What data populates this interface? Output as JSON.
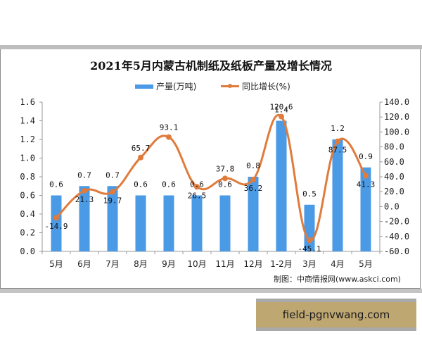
{
  "chart_data": {
    "type": "bar+line",
    "title": "2021年5月内蒙古机制纸及纸板产量及增长情况",
    "categories": [
      "5月",
      "6月",
      "7月",
      "8月",
      "9月",
      "10月",
      "11月",
      "12月",
      "1-2月",
      "3月",
      "4月",
      "5月"
    ],
    "series": [
      {
        "name": "产量(万吨)",
        "type": "bar",
        "axis": "left",
        "color": "#4a9ae6",
        "values": [
          0.6,
          0.7,
          0.7,
          0.6,
          0.6,
          0.6,
          0.6,
          0.8,
          1.4,
          0.5,
          1.2,
          0.9
        ],
        "labels": [
          "0.6",
          "0.7",
          "0.7",
          "0.6",
          "0.6",
          "0.6",
          "0.6",
          "0.8",
          "1.4",
          "0.5",
          "1.2",
          "0.9"
        ]
      },
      {
        "name": "同比增长(%)",
        "type": "line",
        "axis": "right",
        "color": "#e07b3c",
        "values": [
          -14.9,
          21.3,
          19.7,
          65.7,
          93.1,
          26.5,
          37.8,
          36.2,
          120.6,
          -45.1,
          87.5,
          41.3
        ],
        "labels": [
          "-14.9",
          "21.3",
          "19.7",
          "65.7",
          "93.1",
          "26.5",
          "37.8",
          "36.2",
          "120.6",
          "-45.1",
          "87.5",
          "41.3"
        ]
      }
    ],
    "y_left": {
      "label": "",
      "ticks": [
        "0.0",
        "0.2",
        "0.4",
        "0.6",
        "0.8",
        "1.0",
        "1.2",
        "1.4",
        "1.6"
      ],
      "ylim": [
        0,
        1.6
      ]
    },
    "y_right": {
      "label": "",
      "ticks": [
        "-60.0",
        "-40.0",
        "-20.0",
        "0.0",
        "20.0",
        "40.0",
        "60.0",
        "80.0",
        "100.0",
        "120.0",
        "140.0"
      ],
      "ylim": [
        -60,
        140
      ]
    },
    "grid": false,
    "legend_position": "top"
  },
  "legend": {
    "bar_label": "产量(万吨)",
    "line_label": "同比增长(%)"
  },
  "source": "制图：中商情报网(www.askci.com)",
  "watermark_text": "field-pgnvwang.com"
}
